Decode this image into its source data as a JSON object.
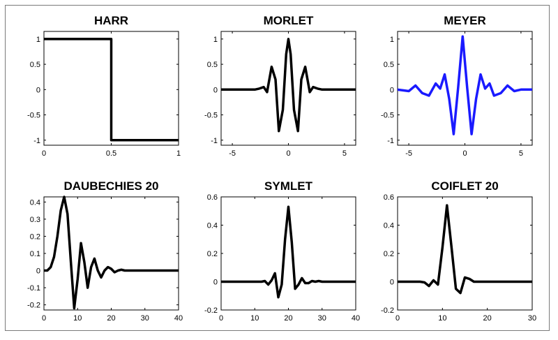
{
  "chart_data": [
    {
      "type": "line",
      "title": "HARR",
      "xlim": [
        0,
        1
      ],
      "ylim": [
        -1.1,
        1.15
      ],
      "xticks": [
        0,
        0.5,
        1
      ],
      "yticks": [
        -1,
        -0.5,
        0,
        0.5,
        1
      ],
      "xtick_labels": [
        "0",
        "0.5",
        "1"
      ],
      "ytick_labels": [
        "-1",
        "-0.5",
        "0",
        "0.5",
        "1"
      ],
      "grid": false,
      "series": [
        {
          "color": "#000000",
          "x": [
            0,
            0.5,
            0.5,
            1
          ],
          "y": [
            1,
            1,
            -1,
            -1
          ]
        }
      ]
    },
    {
      "type": "line",
      "title": "MORLET",
      "xlim": [
        -6,
        6
      ],
      "ylim": [
        -1.1,
        1.15
      ],
      "xticks": [
        -5,
        0,
        5
      ],
      "yticks": [
        -1,
        -0.5,
        0,
        0.5,
        1
      ],
      "xtick_labels": [
        "-5",
        "0",
        "5"
      ],
      "ytick_labels": [
        "-1",
        "-0.5",
        "0",
        "0.5",
        "1"
      ],
      "grid": false,
      "series": [
        {
          "color": "#000000",
          "x": [
            -6,
            -3.5,
            -3,
            -2.6,
            -2.2,
            -1.9,
            -1.5,
            -1.15,
            -0.85,
            -0.5,
            -0.2,
            0,
            0.2,
            0.5,
            0.85,
            1.15,
            1.5,
            1.9,
            2.2,
            2.6,
            3,
            3.5,
            6
          ],
          "y": [
            0,
            0,
            0,
            0.02,
            0.05,
            -0.05,
            0.45,
            0.2,
            -0.82,
            -0.4,
            0.7,
            1.0,
            0.7,
            -0.4,
            -0.82,
            0.2,
            0.45,
            -0.05,
            0.05,
            0.02,
            0,
            0,
            0
          ]
        }
      ]
    },
    {
      "type": "line",
      "title": "MEYER",
      "xlim": [
        -6,
        6
      ],
      "ylim": [
        -1.1,
        1.15
      ],
      "xticks": [
        -5,
        0,
        5
      ],
      "yticks": [
        -1,
        -0.5,
        0,
        0.5,
        1
      ],
      "xtick_labels": [
        "-5",
        "0",
        "5"
      ],
      "ytick_labels": [
        "-1",
        "-0.5",
        "0",
        "0.5",
        "1"
      ],
      "grid": false,
      "series": [
        {
          "color": "#1a1aff",
          "x": [
            -6,
            -5,
            -4.4,
            -3.8,
            -3.2,
            -2.6,
            -2.2,
            -1.8,
            -1.4,
            -1.0,
            -0.6,
            -0.2,
            0.2,
            0.6,
            1.0,
            1.4,
            1.8,
            2.2,
            2.6,
            3.2,
            3.8,
            4.4,
            5,
            6
          ],
          "y": [
            0,
            -0.03,
            0.08,
            -0.07,
            -0.12,
            0.12,
            0.02,
            0.3,
            -0.18,
            -0.88,
            0.05,
            1.05,
            0.05,
            -0.88,
            -0.18,
            0.3,
            0.02,
            0.12,
            -0.12,
            -0.07,
            0.08,
            -0.03,
            0,
            0
          ]
        }
      ]
    },
    {
      "type": "line",
      "title": "DAUBECHIES 20",
      "xlim": [
        0,
        40
      ],
      "ylim": [
        -0.23,
        0.43
      ],
      "xticks": [
        0,
        10,
        20,
        30,
        40
      ],
      "yticks": [
        -0.2,
        -0.1,
        0,
        0.1,
        0.2,
        0.3,
        0.4
      ],
      "xtick_labels": [
        "0",
        "10",
        "20",
        "30",
        "40"
      ],
      "ytick_labels": [
        "-0.2",
        "-0.1",
        "0",
        "0.1",
        "0.2",
        "0.3",
        "0.4"
      ],
      "grid": false,
      "series": [
        {
          "color": "#000000",
          "x": [
            0,
            1,
            2,
            3,
            4,
            5,
            6,
            7,
            8,
            9,
            10,
            11,
            12,
            13,
            14,
            15,
            16,
            17,
            18,
            19,
            20,
            21,
            22,
            23,
            24,
            25,
            26,
            40
          ],
          "y": [
            0,
            0,
            0.02,
            0.08,
            0.2,
            0.35,
            0.43,
            0.33,
            0.05,
            -0.22,
            -0.05,
            0.16,
            0.05,
            -0.1,
            0.02,
            0.07,
            0.0,
            -0.04,
            0.0,
            0.02,
            0.01,
            -0.01,
            0,
            0.005,
            0,
            0,
            0,
            0
          ]
        }
      ]
    },
    {
      "type": "line",
      "title": "SYMLET",
      "xlim": [
        0,
        40
      ],
      "ylim": [
        -0.2,
        0.6
      ],
      "xticks": [
        0,
        10,
        20,
        30,
        40
      ],
      "yticks": [
        -0.2,
        0,
        0.2,
        0.4,
        0.6
      ],
      "xtick_labels": [
        "0",
        "10",
        "20",
        "30",
        "40"
      ],
      "ytick_labels": [
        "-0.2",
        "0",
        "0.2",
        "0.4",
        "0.6"
      ],
      "grid": false,
      "series": [
        {
          "color": "#000000",
          "x": [
            0,
            10,
            12,
            13,
            14,
            15,
            16,
            17,
            18,
            19,
            20,
            21,
            22,
            23,
            24,
            25,
            26,
            27,
            28,
            29,
            30,
            32,
            40
          ],
          "y": [
            0,
            0,
            0,
            0.005,
            -0.02,
            0.01,
            0.06,
            -0.11,
            -0.02,
            0.3,
            0.53,
            0.28,
            -0.05,
            -0.02,
            0.025,
            -0.01,
            -0.01,
            0.005,
            0.0,
            0.005,
            0,
            0,
            0
          ]
        }
      ]
    },
    {
      "type": "line",
      "title": "COIFLET 20",
      "xlim": [
        0,
        30
      ],
      "ylim": [
        -0.2,
        0.6
      ],
      "xticks": [
        0,
        10,
        20,
        30
      ],
      "yticks": [
        -0.2,
        0,
        0.2,
        0.4,
        0.6
      ],
      "xtick_labels": [
        "0",
        "10",
        "20",
        "30"
      ],
      "ytick_labels": [
        "-0.2",
        "0",
        "0.2",
        "0.4",
        "0.6"
      ],
      "grid": false,
      "series": [
        {
          "color": "#000000",
          "x": [
            0,
            3,
            5,
            6,
            7,
            8,
            9,
            10,
            11,
            12,
            13,
            14,
            15,
            16,
            17,
            18,
            20,
            30
          ],
          "y": [
            0,
            0,
            0,
            -0.005,
            -0.03,
            0.01,
            -0.02,
            0.24,
            0.54,
            0.25,
            -0.05,
            -0.08,
            0.03,
            0.02,
            0.0,
            0,
            0,
            0
          ]
        }
      ]
    }
  ]
}
